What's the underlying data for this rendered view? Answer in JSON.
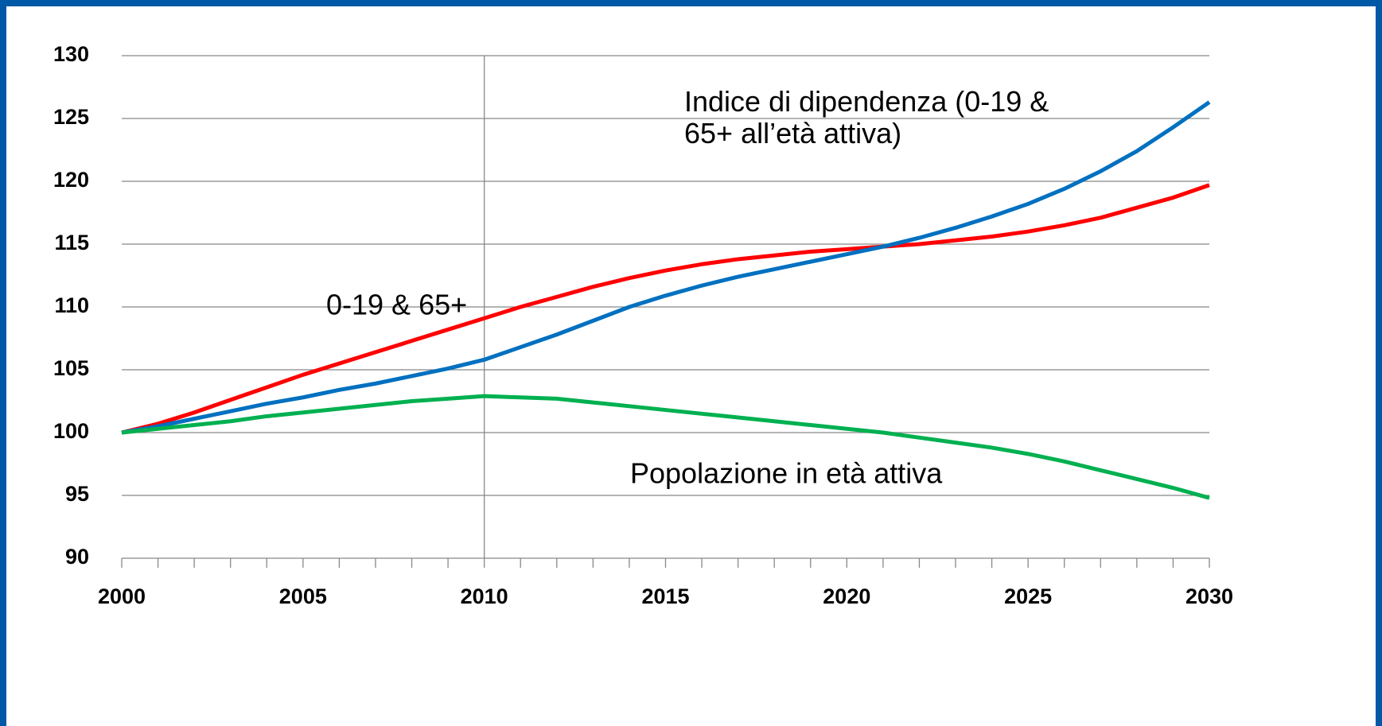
{
  "chart_data": {
    "type": "line",
    "x": [
      2000,
      2001,
      2002,
      2003,
      2004,
      2005,
      2006,
      2007,
      2008,
      2009,
      2010,
      2011,
      2012,
      2013,
      2014,
      2015,
      2016,
      2017,
      2018,
      2019,
      2020,
      2021,
      2022,
      2023,
      2024,
      2025,
      2026,
      2027,
      2028,
      2029,
      2030
    ],
    "series": [
      {
        "name": "0-19 & 65+",
        "color": "#ff0000",
        "values": [
          100,
          100.7,
          101.6,
          102.6,
          103.6,
          104.6,
          105.5,
          106.4,
          107.3,
          108.2,
          109.1,
          110.0,
          110.8,
          111.6,
          112.3,
          112.9,
          113.4,
          113.8,
          114.1,
          114.4,
          114.6,
          114.8,
          115.0,
          115.3,
          115.6,
          116.0,
          116.5,
          117.1,
          117.9,
          118.7,
          119.7
        ]
      },
      {
        "name": "Indice di dipendenza (0-19 & 65+ all’età attiva)",
        "color": "#0070c0",
        "values": [
          100,
          100.5,
          101.1,
          101.7,
          102.3,
          102.8,
          103.4,
          103.9,
          104.5,
          105.1,
          105.8,
          106.8,
          107.8,
          108.9,
          110.0,
          110.9,
          111.7,
          112.4,
          113.0,
          113.6,
          114.2,
          114.8,
          115.5,
          116.3,
          117.2,
          118.2,
          119.4,
          120.8,
          122.4,
          124.3,
          126.3
        ]
      },
      {
        "name": "Popolazione in età attiva",
        "color": "#00b050",
        "values": [
          100,
          100.3,
          100.6,
          100.9,
          101.3,
          101.6,
          101.9,
          102.2,
          102.5,
          102.7,
          102.9,
          102.8,
          102.7,
          102.4,
          102.1,
          101.8,
          101.5,
          101.2,
          100.9,
          100.6,
          100.3,
          100.0,
          99.6,
          99.2,
          98.8,
          98.3,
          97.7,
          97.0,
          96.3,
          95.6,
          94.8
        ]
      }
    ],
    "xlim": [
      2000,
      2030
    ],
    "xticks": [
      2000,
      2005,
      2010,
      2015,
      2020,
      2025,
      2030
    ],
    "xminor": [
      2000,
      2001,
      2002,
      2003,
      2004,
      2005,
      2006,
      2007,
      2008,
      2009,
      2010,
      2011,
      2012,
      2013,
      2014,
      2015,
      2016,
      2017,
      2018,
      2019,
      2020,
      2021,
      2022,
      2023,
      2024,
      2025,
      2026,
      2027,
      2028,
      2029,
      2030
    ],
    "ylim": [
      90,
      130
    ],
    "yticks": [
      90,
      95,
      100,
      105,
      110,
      115,
      120,
      125,
      130
    ],
    "vline": 2010,
    "grid": true
  }
}
